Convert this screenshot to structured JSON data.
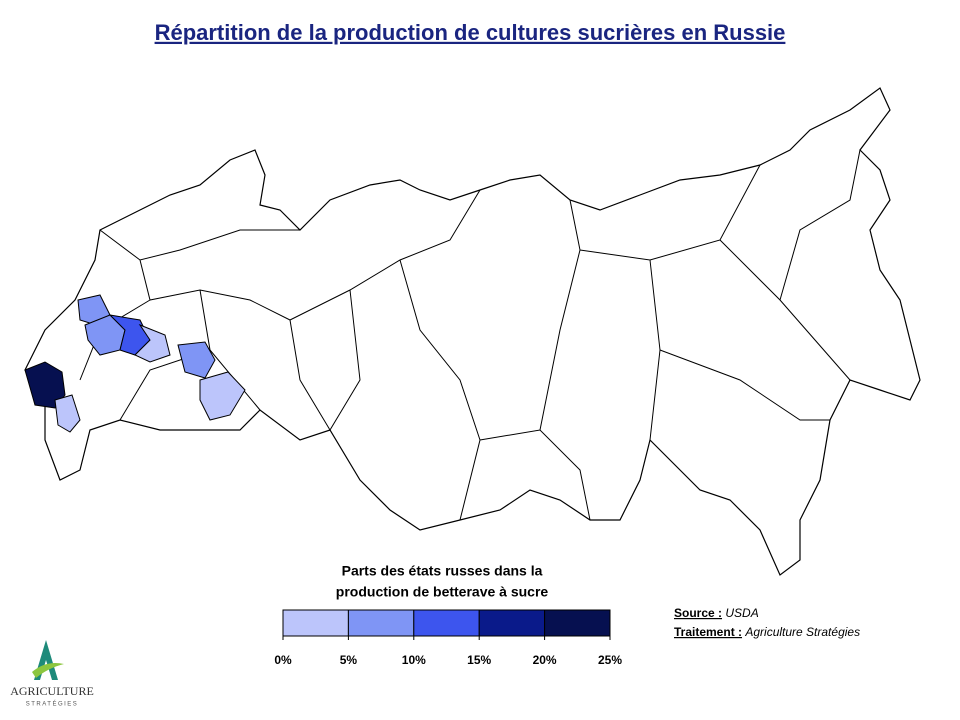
{
  "title": "Répartition de la production de cultures sucrières en Russie",
  "legend": {
    "title_lines": [
      "Parts des états russes dans la",
      "production de betterave à sucre"
    ],
    "colors": [
      "#bcc5fb",
      "#7f95f5",
      "#3d55ee",
      "#0a1a8a",
      "#061050"
    ],
    "ticks": [
      {
        "value": 0,
        "label": "0%"
      },
      {
        "value": 5,
        "label": "5%"
      },
      {
        "value": 10,
        "label": "10%"
      },
      {
        "value": 15,
        "label": "15%"
      },
      {
        "value": 20,
        "label": "20%"
      },
      {
        "value": 25,
        "label": "25%"
      }
    ]
  },
  "source": {
    "label": "Source :",
    "value": "USDA"
  },
  "treatment": {
    "label": "Traitement :",
    "value": "Agriculture Stratégies"
  },
  "logo": {
    "name": "AGRICULTURE",
    "tagline": "STRATÉGIES"
  }
}
